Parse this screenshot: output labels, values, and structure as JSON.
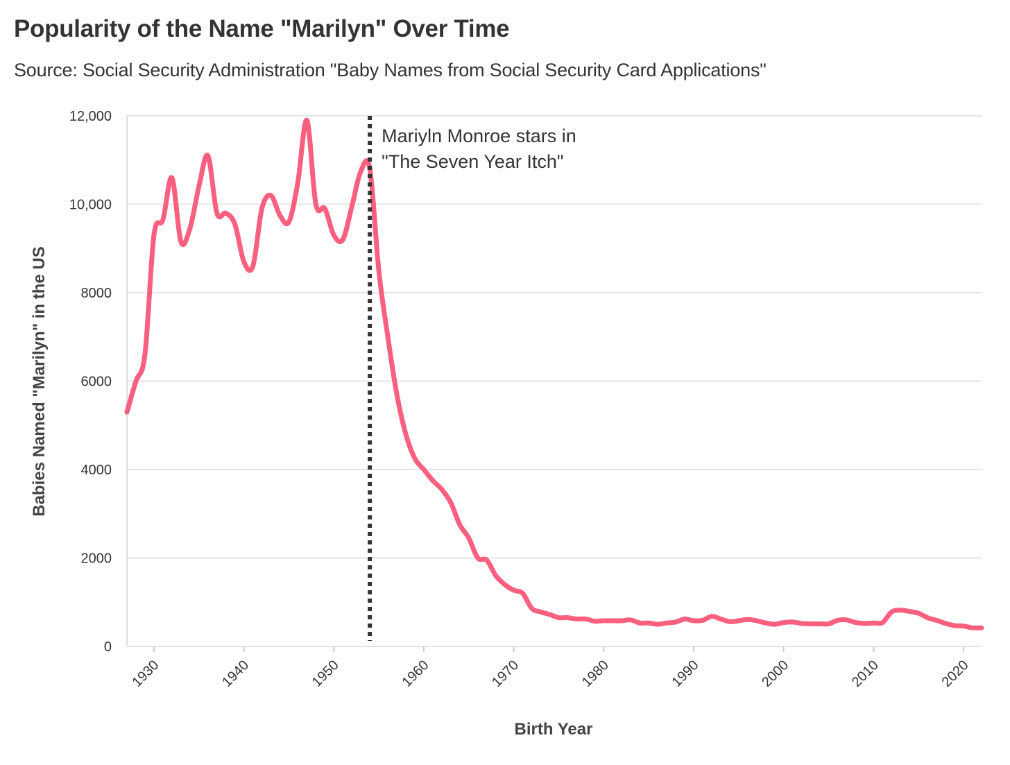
{
  "chart_data": {
    "type": "line",
    "title": "Popularity of the Name \"Marilyn\" Over Time",
    "subtitle": "Source: Social Security Administration \"Baby Names from Social Security Card Applications\"",
    "xlabel": "Birth Year",
    "ylabel": "Babies Named \"Marilyn\" in the US",
    "xlim": [
      1927,
      2022
    ],
    "ylim": [
      0,
      12000
    ],
    "grid": "horizontal",
    "x_ticks": [
      {
        "value": 1930,
        "label": "1930"
      },
      {
        "value": 1940,
        "label": "1940"
      },
      {
        "value": 1950,
        "label": "1950"
      },
      {
        "value": 1960,
        "label": "1960"
      },
      {
        "value": 1970,
        "label": "1970"
      },
      {
        "value": 1980,
        "label": "1980"
      },
      {
        "value": 1990,
        "label": "1990"
      },
      {
        "value": 2000,
        "label": "2000"
      },
      {
        "value": 2010,
        "label": "2010"
      },
      {
        "value": 2020,
        "label": "2020"
      }
    ],
    "y_ticks": [
      {
        "value": 0,
        "label": "0"
      },
      {
        "value": 2000,
        "label": "2000"
      },
      {
        "value": 4000,
        "label": "4000"
      },
      {
        "value": 6000,
        "label": "6000"
      },
      {
        "value": 8000,
        "label": "8000"
      },
      {
        "value": 10000,
        "label": "10,000"
      },
      {
        "value": 12000,
        "label": "12,000"
      }
    ],
    "line_color": "#f9607f",
    "annotation": {
      "x": 1954,
      "style": "dotted vertical line",
      "color": "#333333",
      "lines": [
        "Mariyln Monroe stars in",
        "\"The Seven Year Itch\""
      ]
    },
    "series": [
      {
        "x": [
          1927,
          1928,
          1929,
          1930,
          1931,
          1932,
          1933,
          1934,
          1935,
          1936,
          1937,
          1938,
          1939,
          1940,
          1941,
          1942,
          1943,
          1944,
          1945,
          1946,
          1947,
          1948,
          1949,
          1950,
          1951,
          1952,
          1953,
          1954,
          1955,
          1956,
          1957,
          1958,
          1959,
          1960,
          1961,
          1962,
          1963,
          1964,
          1965,
          1966,
          1967,
          1968,
          1969,
          1970,
          1971,
          1972,
          1973,
          1974,
          1975,
          1976,
          1977,
          1978,
          1979,
          1980,
          1981,
          1982,
          1983,
          1984,
          1985,
          1986,
          1987,
          1988,
          1989,
          1990,
          1991,
          1992,
          1993,
          1994,
          1995,
          1996,
          1997,
          1998,
          1999,
          2000,
          2001,
          2002,
          2003,
          2004,
          2005,
          2006,
          2007,
          2008,
          2009,
          2010,
          2011,
          2012,
          2013,
          2014,
          2015,
          2016,
          2017,
          2018,
          2019,
          2020,
          2021,
          2022
        ],
        "values": [
          5300,
          6000,
          6600,
          9300,
          9650,
          10600,
          9150,
          9450,
          10400,
          11100,
          9800,
          9800,
          9550,
          8700,
          8600,
          9900,
          10200,
          9750,
          9600,
          10500,
          11900,
          10000,
          9900,
          9300,
          9200,
          9950,
          10750,
          10800,
          8500,
          7000,
          5700,
          4800,
          4250,
          4000,
          3750,
          3550,
          3250,
          2750,
          2450,
          2000,
          1950,
          1600,
          1400,
          1270,
          1200,
          860,
          780,
          720,
          650,
          650,
          620,
          620,
          570,
          580,
          580,
          580,
          600,
          530,
          530,
          500,
          530,
          550,
          620,
          580,
          590,
          680,
          620,
          560,
          580,
          610,
          580,
          530,
          500,
          540,
          550,
          520,
          510,
          510,
          510,
          590,
          600,
          540,
          520,
          530,
          540,
          780,
          820,
          790,
          750,
          650,
          590,
          520,
          470,
          460,
          420,
          420
        ]
      }
    ]
  }
}
